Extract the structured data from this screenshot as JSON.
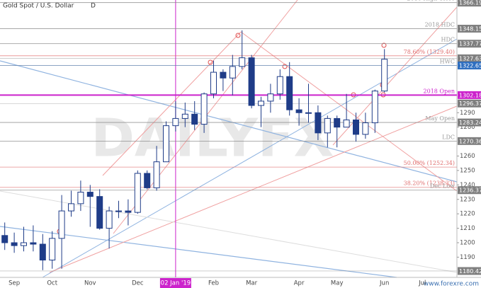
{
  "chart_data": {
    "type": "candlestick",
    "title": "Gold Spot / U.S. Dollar",
    "interval": "D",
    "watermark": "DAILYFX",
    "source": "www.forexre.com",
    "up_color": "#ffffff",
    "down_color": "#1f3c88",
    "wick_color": "#1f3c88",
    "categories": [
      null,
      "Sep",
      null,
      null,
      null,
      "Oct",
      null,
      null,
      null,
      "Nov",
      null,
      null,
      null,
      null,
      "Dec",
      null,
      null,
      null,
      "02 Jan '19",
      null,
      null,
      null,
      "Feb",
      null,
      null,
      null,
      "Mar",
      null,
      null,
      null,
      null,
      "Apr",
      null,
      null,
      null,
      "May",
      null,
      null,
      null,
      null,
      "Jun",
      null,
      null,
      null,
      "Jul",
      null,
      null,
      null
    ],
    "open": [
      1205,
      1200,
      1198,
      1200,
      1199,
      1188,
      1203,
      1222,
      1227,
      1235,
      1232,
      1210,
      1222,
      1222,
      1221,
      1248,
      1238,
      1256,
      1281,
      1286,
      1289,
      1282,
      1303,
      1318,
      1314,
      1322,
      1328,
      1295,
      1298,
      1303,
      1315,
      1292,
      1290,
      1290,
      1276,
      1286,
      1280,
      1285,
      1275,
      1283,
      1305,
      null,
      null,
      null,
      null,
      null,
      null,
      null
    ],
    "high": [
      1214,
      1207,
      1211,
      1212,
      1206,
      1208,
      1233,
      1236,
      1243,
      1240,
      1237,
      1225,
      1229,
      1230,
      1250,
      1250,
      1267,
      1284,
      1298,
      1297,
      1298,
      1304,
      1326,
      1320,
      1330,
      1347,
      1330,
      1301,
      1310,
      1320,
      1325,
      1300,
      1310,
      1295,
      1288,
      1288,
      1303,
      1290,
      1290,
      1306,
      1334,
      null,
      null,
      null,
      null,
      null,
      null,
      null
    ],
    "low": [
      1195,
      1193,
      1194,
      1194,
      1181,
      1182,
      1182,
      1218,
      1222,
      1211,
      1209,
      1196,
      1217,
      1212,
      1220,
      1237,
      1236,
      1256,
      1277,
      1280,
      1278,
      1276,
      1300,
      1305,
      1302,
      1320,
      1293,
      1280,
      1290,
      1299,
      1288,
      1281,
      1283,
      1271,
      1266,
      1266,
      1280,
      1270,
      1272,
      1276,
      1304,
      null,
      null,
      null,
      null,
      null,
      null,
      null
    ],
    "close": [
      1200,
      1198,
      1200,
      1199,
      1188,
      1203,
      1222,
      1227,
      1235,
      1232,
      1210,
      1222,
      1222,
      1221,
      1248,
      1238,
      1256,
      1281,
      1286,
      1289,
      1282,
      1303,
      1318,
      1314,
      1322,
      1328,
      1295,
      1298,
      1303,
      1315,
      1292,
      1290,
      1290,
      1276,
      1286,
      1280,
      1285,
      1275,
      1283,
      1305,
      1327,
      null,
      null,
      null,
      null,
      null,
      null,
      null
    ],
    "ylim": [
      1176,
      1368
    ],
    "yticks": [
      1190,
      1200,
      1210,
      1220,
      1230,
      1240,
      1250,
      1260,
      1280,
      1290
    ],
    "price_labels": [
      {
        "value": 1366.19,
        "color": "#7f7f7f"
      },
      {
        "value": 1348.15,
        "color": "#7f7f7f"
      },
      {
        "value": 1337.77,
        "color": "#7f7f7f"
      },
      {
        "value": 1327.63,
        "color": "#7f7f7f"
      },
      {
        "value": 1322.65,
        "color": "#2f6fc0"
      },
      {
        "value": 1302.18,
        "color": "#cc22cc"
      },
      {
        "value": 1296.37,
        "color": "#7f7f7f"
      },
      {
        "value": 1283.24,
        "color": "#7f7f7f"
      },
      {
        "value": 1270.36,
        "color": "#7f7f7f"
      },
      {
        "value": 1236.37,
        "color": "#7f7f7f"
      },
      {
        "value": 1180.42,
        "color": "#7f7f7f"
      }
    ],
    "annotations": [
      {
        "value": 1366.19,
        "text": "2016 High Close",
        "color": "#9a9a9a"
      },
      {
        "value": 1348.15,
        "text": "2018 HDC",
        "color": "#9a9a9a"
      },
      {
        "value": 1337.77,
        "text": "HDC",
        "color": "#9a9a9a"
      },
      {
        "value": 1329.4,
        "text": "78.60% (1329.40)",
        "color": "#e07070"
      },
      {
        "value": 1322.65,
        "text": "HWC",
        "color": "#9a9a9a"
      },
      {
        "value": 1302.18,
        "text": "2018 Open",
        "color": "#cc22cc"
      },
      {
        "value": 1283.24,
        "text": "May Open",
        "color": "#9a9a9a"
      },
      {
        "value": 1270.36,
        "text": "LDC",
        "color": "#9a9a9a"
      },
      {
        "value": 1252.34,
        "text": "50.00% (1252.34)",
        "color": "#e07070"
      },
      {
        "value": 1238.33,
        "text": "38.20% (1238.33)",
        "color": "#e07070"
      },
      {
        "value": 1236.37,
        "text": "Dec Low",
        "color": "#9a9a9a"
      }
    ]
  }
}
